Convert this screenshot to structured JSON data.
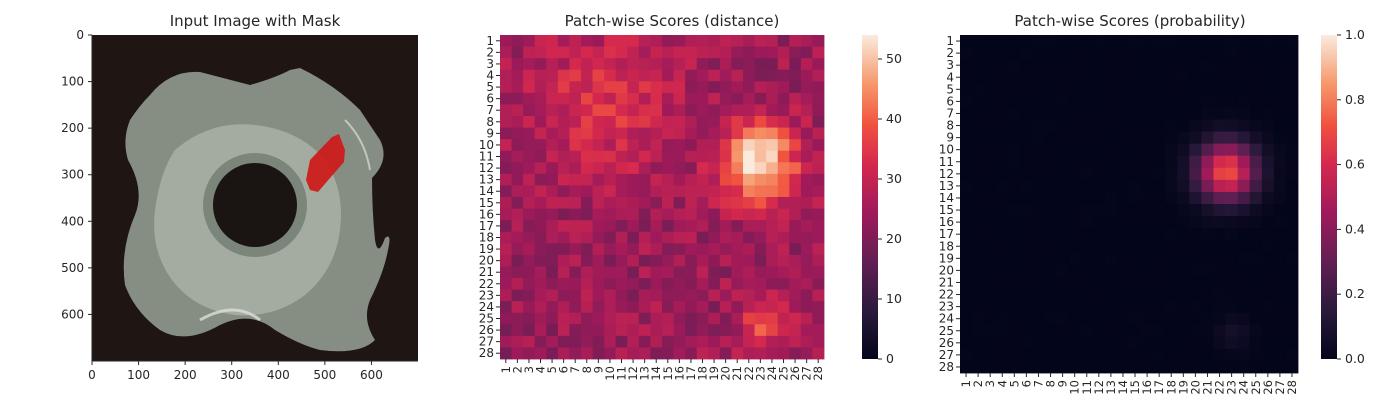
{
  "chart_data": [
    {
      "type": "image",
      "title": "Input Image with Mask",
      "x_ticks": [
        "0",
        "100",
        "200",
        "300",
        "400",
        "500",
        "600"
      ],
      "y_ticks": [
        "0",
        "100",
        "200",
        "300",
        "400",
        "500",
        "600"
      ],
      "xlim": [
        0,
        700
      ],
      "ylim": [
        700,
        0
      ],
      "background_color": "#1f1614",
      "object_color": "#9fa89d",
      "mask_color": "#cc1c1c",
      "mask_region": {
        "x": [
          470,
          540
        ],
        "y": [
          210,
          335
        ]
      }
    },
    {
      "type": "heatmap",
      "title": "Patch-wise Scores (distance)",
      "grid_size": 28,
      "colormap": "rocket",
      "vmin": 0,
      "vmax": 54,
      "colorbar_ticks": [
        "0",
        "10",
        "20",
        "30",
        "40",
        "50"
      ],
      "row_labels": [
        "1",
        "2",
        "3",
        "4",
        "5",
        "6",
        "7",
        "8",
        "9",
        "10",
        "11",
        "12",
        "13",
        "14",
        "15",
        "16",
        "17",
        "18",
        "19",
        "20",
        "21",
        "22",
        "23",
        "24",
        "25",
        "26",
        "27",
        "28"
      ],
      "col_labels": [
        "1",
        "2",
        "3",
        "4",
        "5",
        "6",
        "7",
        "8",
        "9",
        "10",
        "11",
        "12",
        "13",
        "14",
        "15",
        "16",
        "17",
        "18",
        "19",
        "20",
        "21",
        "22",
        "23",
        "24",
        "25",
        "26",
        "27",
        "28"
      ],
      "base_value": 24,
      "hotspots": [
        {
          "row": 11.5,
          "col": 22.8,
          "peak": 54,
          "sigma": 2.4
        },
        {
          "row": 25.3,
          "col": 23.5,
          "peak": 38,
          "sigma": 1.6
        },
        {
          "row": 6.5,
          "col": 9.5,
          "peak": 34,
          "sigma": 4.5
        }
      ]
    },
    {
      "type": "heatmap",
      "title": "Patch-wise Scores (probability)",
      "grid_size": 28,
      "colormap": "rocket",
      "vmin": 0,
      "vmax": 1,
      "colorbar_ticks": [
        "0.0",
        "0.2",
        "0.4",
        "0.6",
        "0.8",
        "1.0"
      ],
      "row_labels": [
        "1",
        "2",
        "3",
        "4",
        "5",
        "6",
        "7",
        "8",
        "9",
        "10",
        "11",
        "12",
        "13",
        "14",
        "15",
        "16",
        "17",
        "18",
        "19",
        "20",
        "21",
        "22",
        "23",
        "24",
        "25",
        "26",
        "27",
        "28"
      ],
      "col_labels": [
        "1",
        "2",
        "3",
        "4",
        "5",
        "6",
        "7",
        "8",
        "9",
        "10",
        "11",
        "12",
        "13",
        "14",
        "15",
        "16",
        "17",
        "18",
        "19",
        "20",
        "21",
        "22",
        "23",
        "24",
        "25",
        "26",
        "27",
        "28"
      ],
      "base_value": 0.0,
      "hotspots": [
        {
          "row": 11.8,
          "col": 22.6,
          "peak": 0.72,
          "sigma": 1.7
        },
        {
          "row": 25.2,
          "col": 23.2,
          "peak": 0.07,
          "sigma": 1.0
        }
      ]
    }
  ]
}
